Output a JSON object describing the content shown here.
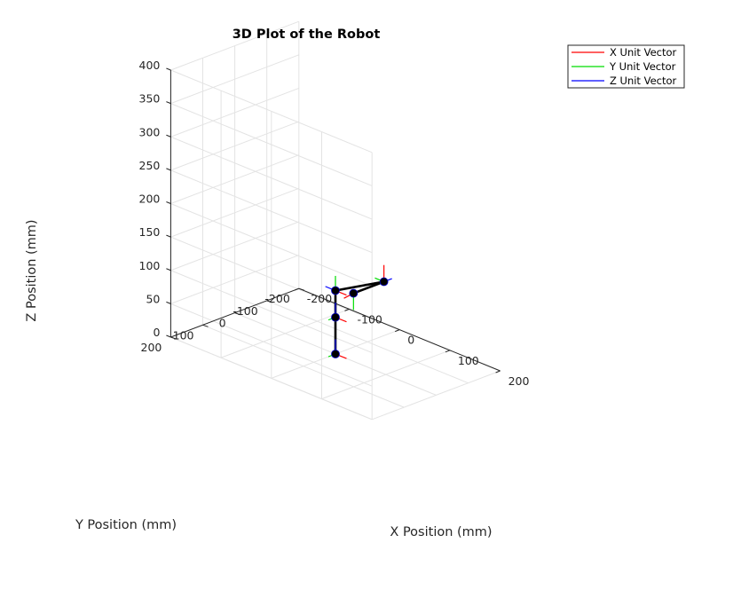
{
  "chart_data": {
    "type": "line3d",
    "title": "3D Plot of the Robot",
    "xlabel": "X Position (mm)",
    "ylabel": "Y Position (mm)",
    "zlabel": "Z Position (mm)",
    "xlim": [
      -200,
      200
    ],
    "ylim": [
      -200,
      200
    ],
    "zlim": [
      0,
      400
    ],
    "xticks": [
      -200,
      -100,
      0,
      100,
      200
    ],
    "yticks": [
      -200,
      -100,
      0,
      100,
      200
    ],
    "zticks": [
      0,
      50,
      100,
      150,
      200,
      250,
      300,
      350,
      400
    ],
    "grid": true,
    "legend_location": "top-right",
    "view": {
      "azimuth": -37.5,
      "elevation": 30
    },
    "joints": [
      {
        "x": 0,
        "y": 0,
        "z": 0
      },
      {
        "x": 0,
        "y": 0,
        "z": 55
      },
      {
        "x": 0,
        "y": 0,
        "z": 95
      },
      {
        "x": 125,
        "y": 45,
        "z": 155
      },
      {
        "x": 125,
        "y": 140,
        "z": 155
      }
    ],
    "series": [
      {
        "name": "X Unit Vector",
        "color": "#ff0000",
        "frames": [
          {
            "x": 22,
            "y": 0,
            "z": 0
          },
          {
            "x": 22,
            "y": 0,
            "z": 0
          },
          {
            "x": 22,
            "y": 0,
            "z": 0
          },
          {
            "x": 0,
            "y": 0,
            "z": 25
          },
          {
            "x": -5,
            "y": 22,
            "z": -5
          }
        ]
      },
      {
        "name": "Y Unit Vector",
        "color": "#00dd00",
        "frames": [
          {
            "x": 0,
            "y": 22,
            "z": 0
          },
          {
            "x": 0,
            "y": 22,
            "z": 0
          },
          {
            "x": 0,
            "y": 0,
            "z": 22
          },
          {
            "x": -18,
            "y": 0,
            "z": 0
          },
          {
            "x": 0,
            "y": 0,
            "z": -25
          }
        ]
      },
      {
        "name": "Z Unit Vector",
        "color": "#0000ff",
        "frames": [
          {
            "x": 0,
            "y": 0,
            "z": 22
          },
          {
            "x": 0,
            "y": 0,
            "z": 22
          },
          {
            "x": -20,
            "y": 0,
            "z": 0
          },
          {
            "x": 0,
            "y": -25,
            "z": 0
          },
          {
            "x": 0,
            "y": 0,
            "z": 0
          }
        ]
      }
    ]
  }
}
